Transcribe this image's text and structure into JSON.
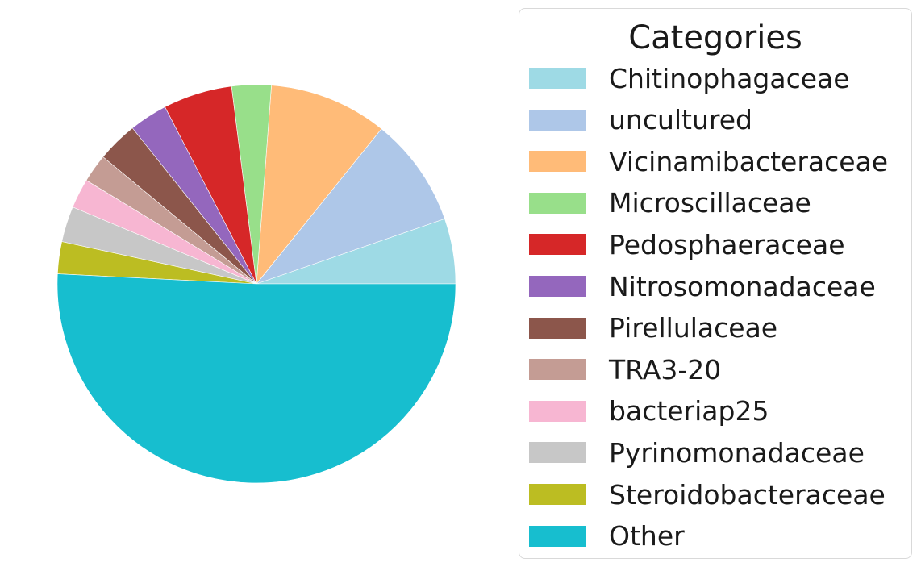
{
  "chart_data": {
    "type": "pie",
    "legend_title": "Categories",
    "legend_position": "right",
    "start_angle": 0,
    "direction": "counterclockwise",
    "slices": [
      {
        "label": "Chitinophagaceae",
        "value": 5.3,
        "color": "#9edae5"
      },
      {
        "label": "uncultured",
        "value": 8.9,
        "color": "#aec7e8"
      },
      {
        "label": "Vicinamibacteraceae",
        "value": 9.6,
        "color": "#ffbb78"
      },
      {
        "label": "Microscillaceae",
        "value": 3.2,
        "color": "#98df8a"
      },
      {
        "label": "Pedosphaeraceae",
        "value": 5.6,
        "color": "#d62728"
      },
      {
        "label": "Nitrosomonadaceae",
        "value": 3.1,
        "color": "#9467bd"
      },
      {
        "label": "Pirellulaceae",
        "value": 3.3,
        "color": "#8c564b"
      },
      {
        "label": "TRA3-20",
        "value": 2.3,
        "color": "#c49c94"
      },
      {
        "label": "bacteriap25",
        "value": 2.4,
        "color": "#f7b6d2"
      },
      {
        "label": "Pyrinomonadaceae",
        "value": 2.9,
        "color": "#c7c7c7"
      },
      {
        "label": "Steroidobacteraceae",
        "value": 2.6,
        "color": "#bcbd22"
      },
      {
        "label": "Other",
        "value": 50.8,
        "color": "#17becf"
      }
    ]
  }
}
